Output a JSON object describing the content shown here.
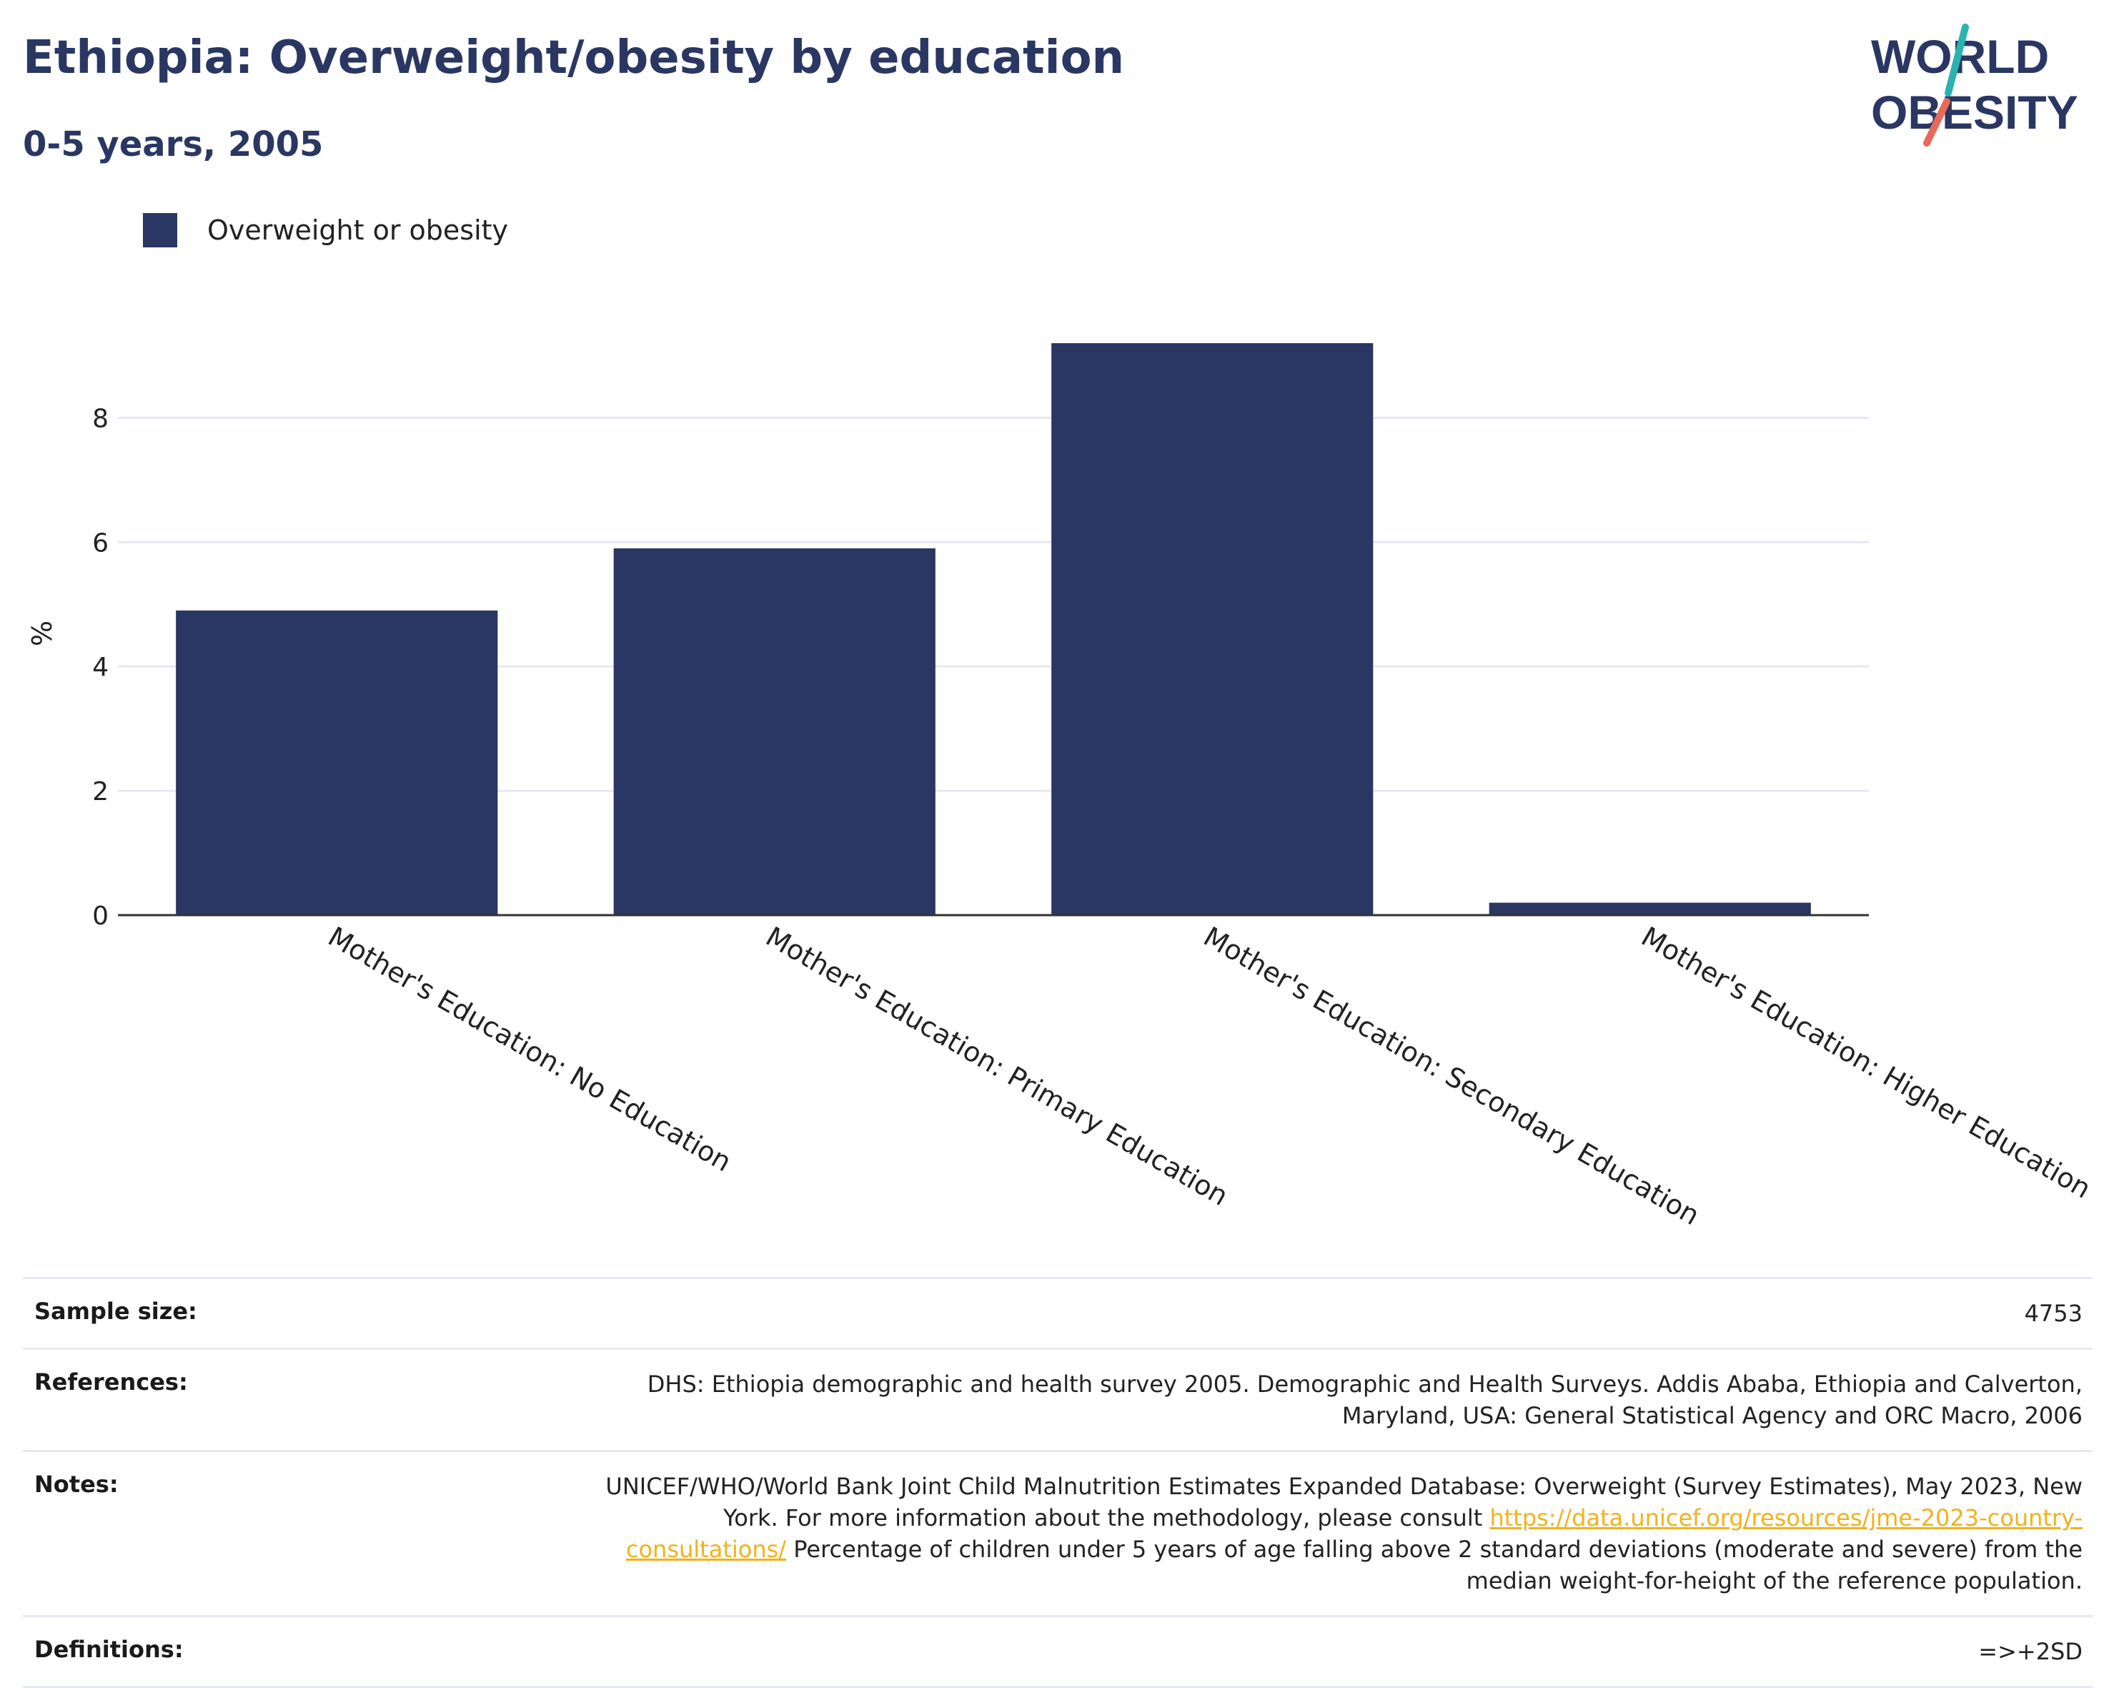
{
  "title": "Ethiopia: Overweight/obesity by education",
  "subtitle": "0-5 years, 2005",
  "logo": {
    "line1": "WORLD",
    "line2": "OBESITY",
    "colors": {
      "text": "#2a3763",
      "accent_teal": "#2bb3b1",
      "accent_red": "#e8685a"
    }
  },
  "colors": {
    "bar": "#2a3763",
    "grid": "#e6e9f2",
    "axis": "#333333",
    "link": "#f2b21b"
  },
  "chart_data": {
    "type": "bar",
    "title": "Ethiopia: Overweight/obesity by education",
    "subtitle": "0-5 years, 2005",
    "categories": [
      "Mother's Education: No Education",
      "Mother's Education: Primary Education",
      "Mother's Education: Secondary Education",
      "Mother's Education: Higher Education"
    ],
    "series": [
      {
        "name": "Overweight or obesity",
        "values": [
          4.9,
          5.9,
          9.2,
          0.2
        ]
      }
    ],
    "ylabel": "%",
    "xlabel": "",
    "ylim": [
      0,
      9.2
    ],
    "yticks": [
      0,
      2,
      4,
      6,
      8
    ],
    "grid": true,
    "legend": "top-left"
  },
  "meta": {
    "sample_size_label": "Sample size:",
    "sample_size": "4753",
    "references_label": "References:",
    "references": "DHS: Ethiopia demographic and health survey 2005. Demographic and Health Surveys. Addis Ababa, Ethiopia and Calverton, Maryland, USA: General Statistical Agency and ORC Macro, 2006",
    "notes_label": "Notes:",
    "notes_before": "UNICEF/WHO/World Bank Joint Child Malnutrition Estimates Expanded Database: Overweight (Survey Estimates), May 2023, New York. For more information about the methodology, please consult",
    "notes_link": "https://data.unicef.org/resources/jme-2023-country-consultations/",
    "notes_after": "Percentage of children under 5 years of age falling above 2 standard deviations (moderate and severe) from the median weight-for-height of the reference population.",
    "definitions_label": "Definitions:",
    "definitions": "=>+2SD"
  }
}
